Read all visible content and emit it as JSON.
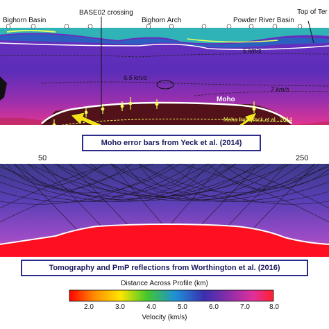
{
  "top_panel": {
    "labels": {
      "bighorn_basin": "Bighorn Basin",
      "base02_crossing": "BASE02 crossing",
      "bighorn_arch": "Bighorn Arch",
      "powder_river_basin": "Powder River Basin",
      "top_of_ter": "Top of Ter",
      "v6": "6 km/s",
      "v65": "6.5 km/s",
      "v7": "7 km/s",
      "moho": "Moho",
      "moho_yeck": "Moho from Yeck et al., 2014"
    },
    "x_ticks": [
      "50",
      "250"
    ],
    "callout": "Moho error bars from Yeck et al. (2014)"
  },
  "bottom_panel": {
    "callout": "Tomography and PmP reflections from Worthington et al. (2016)"
  },
  "colorbar": {
    "top_label": "Distance Across Profile (km)",
    "ticks": [
      "2.0",
      "3.0",
      "4.0",
      "5.0",
      "6.0",
      "7.0",
      "8.0"
    ],
    "label": "Velocity (km/s)",
    "colors": [
      "#ff0000",
      "#ff8a00",
      "#ffe500",
      "#43c82c",
      "#1e8fd8",
      "#3a2fb0",
      "#8a2da8",
      "#e0309c",
      "#ff2030"
    ]
  }
}
